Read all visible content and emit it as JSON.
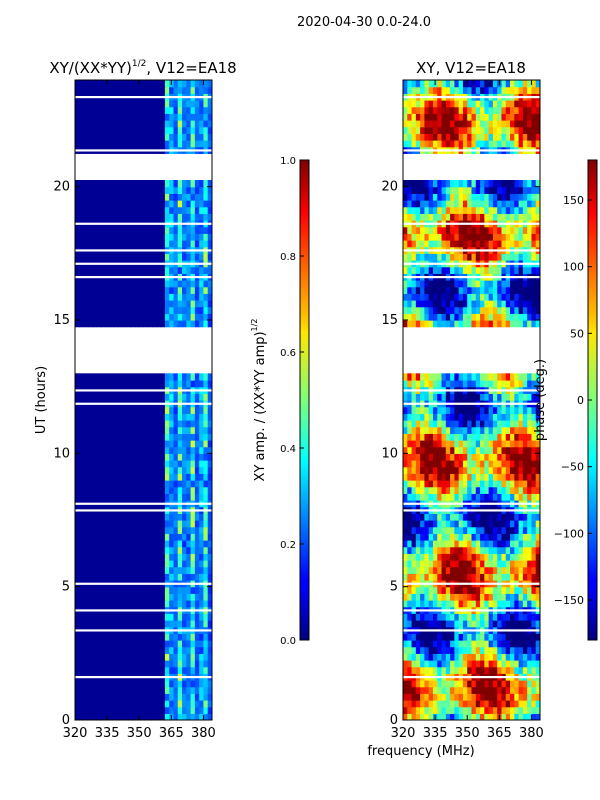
{
  "suptitle": "2020-04-30 0.0-24.0",
  "xlabel": "frequency (MHz)",
  "chart_data": [
    {
      "type": "heatmap",
      "title_main": "XY/(XX*YY)",
      "title_sup": "1/2",
      "title_tail": ", V12=EA18",
      "ylabel": "UT (hours)",
      "xlim": [
        320,
        384
      ],
      "ylim": [
        0,
        24
      ],
      "xticks": [
        320,
        335,
        350,
        365,
        380
      ],
      "yticks": [
        0,
        5,
        10,
        15,
        20
      ],
      "colorbar": {
        "label_main": "XY amp. / (XX*YY amp)",
        "label_sup": "1/2",
        "range": [
          0.0,
          1.0
        ],
        "ticks": [
          "0.0",
          "0.2",
          "0.4",
          "0.6",
          "0.8",
          "1.0"
        ],
        "tick_values": [
          0.0,
          0.2,
          0.4,
          0.6,
          0.8,
          1.0
        ],
        "colormap": "jet"
      },
      "missing_bands_hours": [
        [
          20.2,
          21.2
        ],
        [
          12.9,
          14.7
        ]
      ],
      "note": "Amplitude near 0 (dark blue) below ~362 MHz; elevated values (0.2-0.6) in vertical channels between ~362 and ~382 MHz"
    },
    {
      "type": "heatmap",
      "title": "XY, V12=EA18",
      "xlim": [
        320,
        384
      ],
      "ylim": [
        0,
        24
      ],
      "xticks": [
        320,
        335,
        350,
        365,
        380
      ],
      "yticks": [
        0,
        5,
        10,
        15,
        20
      ],
      "colorbar": {
        "label": "phase (deg.)",
        "range": [
          -180,
          180
        ],
        "ticks": [
          "−150",
          "−100",
          "−50",
          "0",
          "50",
          "100",
          "150"
        ],
        "tick_values": [
          -150,
          -100,
          -50,
          0,
          50,
          100,
          150
        ],
        "colormap": "jet"
      },
      "missing_bands_hours": [
        [
          20.2,
          21.2
        ],
        [
          12.9,
          14.7
        ]
      ],
      "note": "Phase varies across full -180 to 180 range with horizontal banding in time"
    }
  ],
  "colors": {
    "frame": "#000000",
    "background": "#ffffff"
  }
}
